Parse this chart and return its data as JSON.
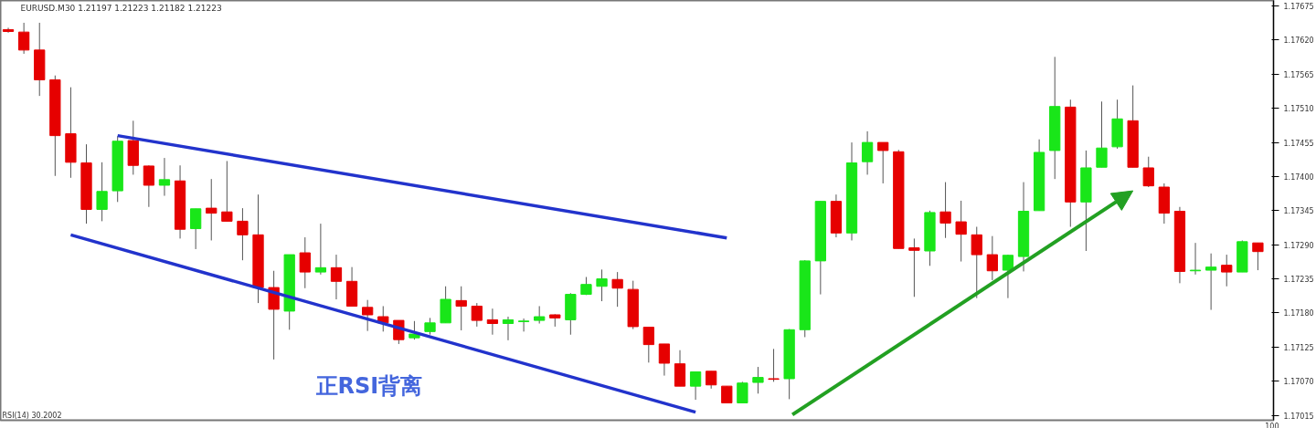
{
  "chart_data": {
    "type": "candlestick",
    "title": "EURUSD.M30  1.21197 1.21223 1.21182 1.21223",
    "categories": [
      null,
      null,
      null,
      null,
      null,
      null,
      null,
      null,
      null,
      null,
      null,
      null,
      null,
      null,
      null,
      null,
      null,
      null,
      null,
      null,
      null,
      null,
      null,
      null,
      null,
      null,
      null,
      null,
      null,
      null,
      null,
      null,
      null,
      null,
      null,
      null,
      null,
      null,
      null,
      null,
      null,
      null,
      null,
      null,
      null,
      null,
      null,
      null,
      null,
      null,
      null,
      null,
      null,
      null,
      null,
      null,
      null,
      null,
      null,
      null,
      null,
      null,
      null,
      null,
      null,
      null,
      null,
      null,
      null,
      null,
      null,
      null,
      null,
      null,
      null,
      null,
      null,
      null,
      null,
      null,
      null
    ],
    "ohlc": [
      [
        1.17637,
        1.1764,
        1.17632,
        1.17634
      ],
      [
        1.17633,
        1.17648,
        1.17598,
        1.17604
      ],
      [
        1.17604,
        1.17648,
        1.1753,
        1.17556
      ],
      [
        1.17556,
        1.17563,
        1.17401,
        1.17466
      ],
      [
        1.17469,
        1.17544,
        1.17398,
        1.17423
      ],
      [
        1.17422,
        1.17452,
        1.17324,
        1.17347
      ],
      [
        1.17347,
        1.17423,
        1.17328,
        1.17376
      ],
      [
        1.17377,
        1.17465,
        1.17359,
        1.17457
      ],
      [
        1.17458,
        1.1749,
        1.17403,
        1.17418
      ],
      [
        1.17417,
        1.17418,
        1.17351,
        1.17386
      ],
      [
        1.17386,
        1.1743,
        1.17369,
        1.17395
      ],
      [
        1.17393,
        1.17418,
        1.173,
        1.17315
      ],
      [
        1.17316,
        1.17348,
        1.17283,
        1.17348
      ],
      [
        1.17349,
        1.17396,
        1.17297,
        1.17341
      ],
      [
        1.17343,
        1.17425,
        1.17328,
        1.17328
      ],
      [
        1.17328,
        1.17349,
        1.17265,
        1.17306
      ],
      [
        1.17306,
        1.17371,
        1.17196,
        1.17221
      ],
      [
        1.17221,
        1.17248,
        1.17105,
        1.17186
      ],
      [
        1.17183,
        1.17274,
        1.17153,
        1.17274
      ],
      [
        1.17277,
        1.17302,
        1.1722,
        1.17246
      ],
      [
        1.17246,
        1.17324,
        1.17242,
        1.17253
      ],
      [
        1.17253,
        1.17274,
        1.17202,
        1.17231
      ],
      [
        1.17231,
        1.17254,
        1.17191,
        1.17191
      ],
      [
        1.17189,
        1.17201,
        1.17151,
        1.17177
      ],
      [
        1.17174,
        1.17191,
        1.1715,
        1.17164
      ],
      [
        1.17168,
        1.17168,
        1.1713,
        1.17137
      ],
      [
        1.1714,
        1.17167,
        1.17137,
        1.17146
      ],
      [
        1.1715,
        1.17172,
        1.17145,
        1.17164
      ],
      [
        1.17164,
        1.17223,
        1.17164,
        1.17202
      ],
      [
        1.172,
        1.17223,
        1.17152,
        1.17191
      ],
      [
        1.17191,
        1.17196,
        1.17158,
        1.17168
      ],
      [
        1.17169,
        1.17187,
        1.17145,
        1.17163
      ],
      [
        1.17163,
        1.17174,
        1.17136,
        1.17169
      ],
      [
        1.17166,
        1.17171,
        1.1715,
        1.17167
      ],
      [
        1.17168,
        1.17191,
        1.17163,
        1.17174
      ],
      [
        1.17177,
        1.17178,
        1.17158,
        1.17172
      ],
      [
        1.17169,
        1.17212,
        1.17145,
        1.1721
      ],
      [
        1.1721,
        1.17238,
        1.17209,
        1.17226
      ],
      [
        1.17223,
        1.1725,
        1.17199,
        1.17235
      ],
      [
        1.17234,
        1.17246,
        1.1719,
        1.1722
      ],
      [
        1.17218,
        1.17232,
        1.17154,
        1.17158
      ],
      [
        1.17157,
        1.17157,
        1.171,
        1.17129
      ],
      [
        1.1713,
        1.1713,
        1.17079,
        1.17099
      ],
      [
        1.17098,
        1.1712,
        1.17062,
        1.17062
      ],
      [
        1.17062,
        1.17085,
        1.1704,
        1.17085
      ],
      [
        1.17086,
        1.17086,
        1.17058,
        1.17064
      ],
      [
        1.17062,
        1.17062,
        1.17035,
        1.17035
      ],
      [
        1.17035,
        1.17069,
        1.17035,
        1.17067
      ],
      [
        1.17068,
        1.17093,
        1.1705,
        1.17076
      ],
      [
        1.17074,
        1.17122,
        1.17069,
        1.17073
      ],
      [
        1.17074,
        1.17154,
        1.17041,
        1.17153
      ],
      [
        1.17153,
        1.17265,
        1.17141,
        1.17264
      ],
      [
        1.17264,
        1.1736,
        1.1721,
        1.1736
      ],
      [
        1.1736,
        1.17371,
        1.17302,
        1.17309
      ],
      [
        1.17309,
        1.17455,
        1.17297,
        1.17422
      ],
      [
        1.17424,
        1.17473,
        1.17403,
        1.17455
      ],
      [
        1.17455,
        1.17455,
        1.17389,
        1.17442
      ],
      [
        1.1744,
        1.17443,
        1.17284,
        1.17284
      ],
      [
        1.17285,
        1.173,
        1.17206,
        1.17281
      ],
      [
        1.1728,
        1.17345,
        1.17256,
        1.17342
      ],
      [
        1.17343,
        1.17391,
        1.17301,
        1.17325
      ],
      [
        1.17327,
        1.17361,
        1.17263,
        1.17307
      ],
      [
        1.17306,
        1.17319,
        1.17204,
        1.17274
      ],
      [
        1.17274,
        1.17304,
        1.17233,
        1.17248
      ],
      [
        1.17249,
        1.17274,
        1.17204,
        1.17273
      ],
      [
        1.17271,
        1.17391,
        1.17247,
        1.17344
      ],
      [
        1.17345,
        1.1746,
        1.17345,
        1.17439
      ],
      [
        1.17442,
        1.17593,
        1.17396,
        1.17513
      ],
      [
        1.17512,
        1.17524,
        1.17319,
        1.17359
      ],
      [
        1.17359,
        1.17442,
        1.1728,
        1.17414
      ],
      [
        1.17415,
        1.17521,
        1.17415,
        1.17446
      ],
      [
        1.17448,
        1.17524,
        1.17445,
        1.17493
      ],
      [
        1.1749,
        1.17547,
        1.17415,
        1.17415
      ],
      [
        1.17414,
        1.17432,
        1.17383,
        1.17385
      ],
      [
        1.17383,
        1.17389,
        1.17324,
        1.17341
      ],
      [
        1.17344,
        1.17351,
        1.17228,
        1.17247
      ],
      [
        1.17248,
        1.17293,
        1.17242,
        1.17249
      ],
      [
        1.17249,
        1.17276,
        1.17185,
        1.17254
      ],
      [
        1.17257,
        1.17274,
        1.17223,
        1.17246
      ],
      [
        1.17246,
        1.17297,
        1.17246,
        1.17295
      ],
      [
        1.17293,
        1.17293,
        1.17249,
        1.17279
      ]
    ],
    "colors": [
      "#e60000",
      "#e60000",
      "#e60000",
      "#e60000",
      "#e60000",
      "#e60000",
      "#19e619",
      "#19e619",
      "#e60000",
      "#e60000",
      "#19e619",
      "#e60000",
      "#19e619",
      "#e60000",
      "#e60000",
      "#e60000",
      "#e60000",
      "#e60000",
      "#19e619",
      "#e60000",
      "#19e619",
      "#e60000",
      "#e60000",
      "#e60000",
      "#e60000",
      "#e60000",
      "#19e619",
      "#19e619",
      "#19e619",
      "#e60000",
      "#e60000",
      "#e60000",
      "#19e619",
      "#19e619",
      "#19e619",
      "#e60000",
      "#19e619",
      "#19e619",
      "#19e619",
      "#e60000",
      "#e60000",
      "#e60000",
      "#e60000",
      "#e60000",
      "#19e619",
      "#e60000",
      "#e60000",
      "#19e619",
      "#19e619",
      "#e60000",
      "#19e619",
      "#19e619",
      "#19e619",
      "#e60000",
      "#19e619",
      "#19e619",
      "#e60000",
      "#e60000",
      "#e60000",
      "#19e619",
      "#e60000",
      "#e60000",
      "#e60000",
      "#e60000",
      "#19e619",
      "#19e619",
      "#19e619",
      "#19e619",
      "#e60000",
      "#19e619",
      "#19e619",
      "#19e619",
      "#e60000",
      "#e60000",
      "#e60000",
      "#e60000",
      "#19e619",
      "#19e619",
      "#e60000",
      "#19e619",
      "#e60000"
    ],
    "series": [
      {
        "type": "line",
        "color": "#2233cc",
        "values": [
          null,
          null,
          null,
          null,
          null,
          null,
          null,
          1.17466,
          null,
          null,
          null,
          null,
          null,
          null,
          null,
          null,
          null,
          null,
          null,
          null,
          null,
          null,
          null,
          null,
          null,
          null,
          null,
          null,
          null,
          null,
          null,
          null,
          null,
          null,
          null,
          null,
          null,
          null,
          null,
          null,
          null,
          null,
          null,
          null,
          null,
          null,
          1.17301,
          null,
          null,
          null,
          null,
          null,
          null,
          null,
          null,
          null,
          null,
          null,
          null,
          null,
          null,
          null,
          null,
          null,
          null,
          null,
          null,
          null,
          null,
          null,
          null,
          null,
          null,
          null,
          null,
          null,
          null,
          null,
          null,
          null,
          null
        ]
      },
      {
        "type": "line",
        "color": "#2233cc",
        "values": [
          null,
          null,
          null,
          null,
          1.17306,
          null,
          null,
          null,
          null,
          null,
          null,
          null,
          null,
          null,
          null,
          null,
          null,
          null,
          null,
          null,
          null,
          null,
          null,
          null,
          null,
          null,
          null,
          null,
          null,
          null,
          null,
          null,
          null,
          null,
          null,
          null,
          null,
          null,
          null,
          null,
          null,
          null,
          null,
          null,
          1.1702,
          null,
          null,
          null,
          null,
          null,
          null,
          null,
          null,
          null,
          null,
          null,
          null,
          null,
          null,
          null,
          null,
          null,
          null,
          null,
          null,
          null,
          null,
          null,
          null,
          null,
          null,
          null,
          null,
          null,
          null,
          null,
          null,
          null,
          null,
          null,
          null
        ]
      }
    ],
    "annotations": [
      "正RSI背离",
      "RSI(14) 30.2002",
      "100"
    ],
    "ylim": [
      1.17007,
      1.17684
    ],
    "yticks": [
      {
        "value": 1.17675,
        "label": "1.17675"
      },
      {
        "value": 1.1762,
        "label": "1.17620"
      },
      {
        "value": 1.17565,
        "label": "1.17565"
      },
      {
        "value": 1.1751,
        "label": "1.17510"
      },
      {
        "value": 1.17455,
        "label": "1.17455"
      },
      {
        "value": 1.174,
        "label": "1.17400"
      },
      {
        "value": 1.17345,
        "label": "1.17345"
      },
      {
        "value": 1.1729,
        "label": "1.17290"
      },
      {
        "value": 1.17235,
        "label": "1.17235"
      },
      {
        "value": 1.1718,
        "label": "1.17180"
      },
      {
        "value": 1.17125,
        "label": "1.17125"
      },
      {
        "value": 1.1707,
        "label": "1.17070"
      },
      {
        "value": 1.17015,
        "label": "1.17015"
      }
    ],
    "tick_labels": "y"
  }
}
